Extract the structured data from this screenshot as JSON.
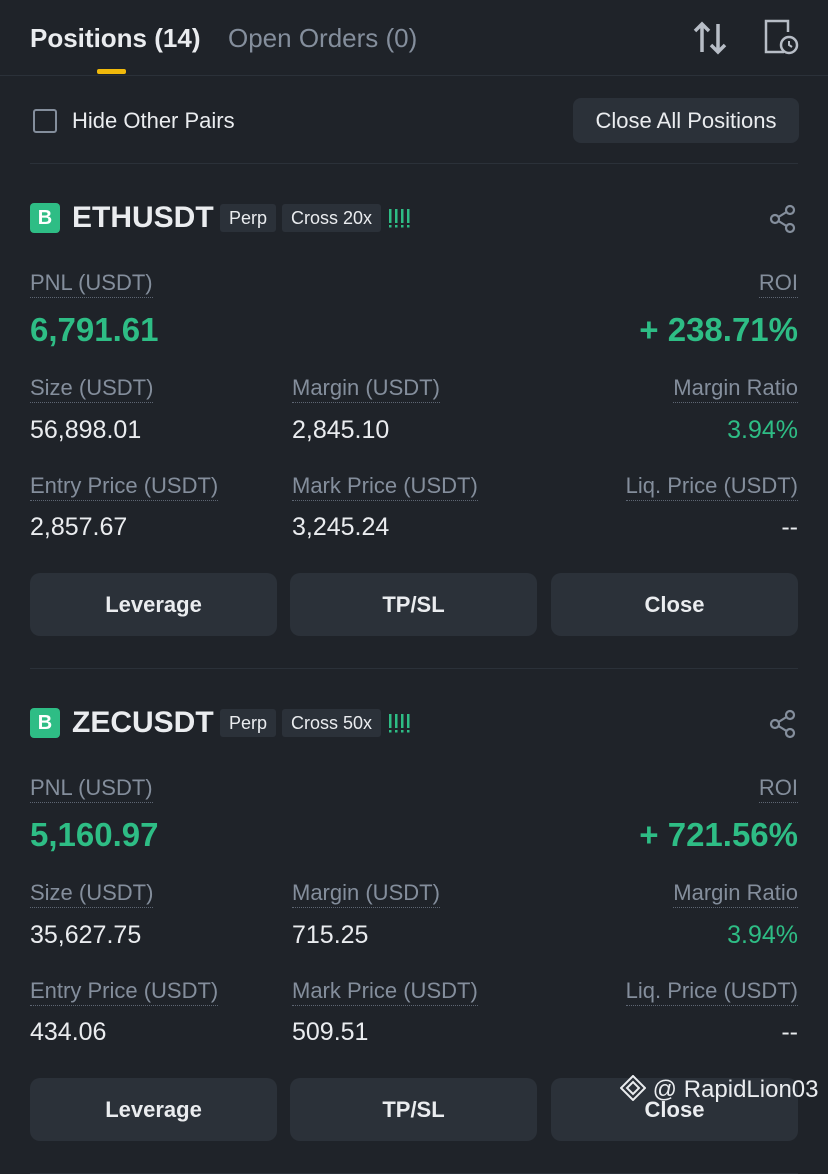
{
  "header": {
    "tabs": [
      "Positions (14)",
      "Open Orders (0)"
    ]
  },
  "toolbar": {
    "hide_other_pairs": "Hide Other Pairs",
    "close_all": "Close All Positions"
  },
  "positions": [
    {
      "side": "B",
      "symbol": "ETHUSDT",
      "contract": "Perp",
      "margin_mode": "Cross 20x",
      "pnl_label": "PNL (USDT)",
      "pnl": "6,791.61",
      "roi_label": "ROI",
      "roi": "+ 238.71%",
      "fields": [
        {
          "label": "Size (USDT)",
          "value": "56,898.01"
        },
        {
          "label": "Margin (USDT)",
          "value": "2,845.10"
        },
        {
          "label": "Margin Ratio",
          "value": "3.94%"
        },
        {
          "label": "Entry Price (USDT)",
          "value": "2,857.67"
        },
        {
          "label": "Mark Price (USDT)",
          "value": "3,245.24"
        },
        {
          "label": "Liq. Price (USDT)",
          "value": "--"
        }
      ],
      "buttons": [
        "Leverage",
        "TP/SL",
        "Close"
      ]
    },
    {
      "side": "B",
      "symbol": "ZECUSDT",
      "contract": "Perp",
      "margin_mode": "Cross 50x",
      "pnl_label": "PNL (USDT)",
      "pnl": "5,160.97",
      "roi_label": "ROI",
      "roi": "+ 721.56%",
      "fields": [
        {
          "label": "Size (USDT)",
          "value": "35,627.75"
        },
        {
          "label": "Margin (USDT)",
          "value": "715.25"
        },
        {
          "label": "Margin Ratio",
          "value": "3.94%"
        },
        {
          "label": "Entry Price (USDT)",
          "value": "434.06"
        },
        {
          "label": "Mark Price (USDT)",
          "value": "509.51"
        },
        {
          "label": "Liq. Price (USDT)",
          "value": "--"
        }
      ],
      "buttons": [
        "Leverage",
        "TP/SL",
        "Close"
      ]
    }
  ],
  "watermark": "@ RapidLion03"
}
